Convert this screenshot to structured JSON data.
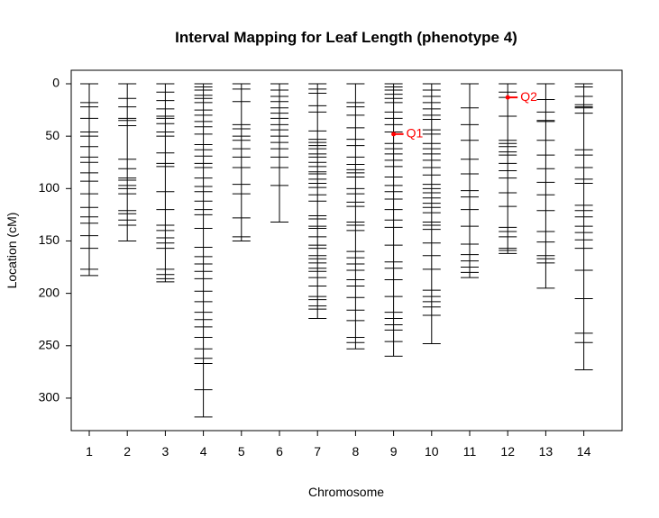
{
  "chart_data": {
    "type": "genetic-map",
    "title": "Interval Mapping for Leaf Length (phenotype 4)",
    "xlabel": "Chromosome",
    "ylabel": "Location (cM)",
    "ylim": [
      331,
      0
    ],
    "yticks": [
      0,
      50,
      100,
      150,
      200,
      250,
      300
    ],
    "grid": false,
    "legend": "none",
    "marker_color": "#000000",
    "qtl_color": "#ff0000",
    "chromosomes": [
      {
        "name": "1",
        "markers": [
          0,
          18,
          22,
          33,
          46,
          50,
          60,
          70,
          75,
          85,
          93,
          105,
          118,
          127,
          133,
          145,
          157,
          177,
          183
        ]
      },
      {
        "name": "2",
        "markers": [
          0,
          14,
          22,
          33,
          35,
          40,
          72,
          81,
          90,
          92,
          97,
          100,
          105,
          121,
          124,
          130,
          135,
          150
        ]
      },
      {
        "name": "3",
        "markers": [
          0,
          8,
          16,
          24,
          31,
          33,
          38,
          46,
          50,
          66,
          76,
          79,
          103,
          120,
          135,
          140,
          147,
          152,
          157,
          177,
          182,
          186,
          189
        ]
      },
      {
        "name": "4",
        "markers": [
          0,
          3,
          6,
          11,
          14,
          18,
          25,
          30,
          36,
          41,
          48,
          58,
          63,
          69,
          76,
          80,
          90,
          98,
          103,
          112,
          120,
          125,
          138,
          156,
          165,
          172,
          179,
          186,
          198,
          208,
          218,
          225,
          232,
          242,
          253,
          262,
          267,
          292,
          318
        ]
      },
      {
        "name": "5",
        "markers": [
          0,
          5,
          17,
          39,
          43,
          50,
          54,
          62,
          70,
          80,
          96,
          105,
          128,
          146,
          150
        ]
      },
      {
        "name": "6",
        "markers": [
          0,
          6,
          12,
          17,
          23,
          28,
          33,
          39,
          44,
          50,
          56,
          62,
          70,
          80,
          97,
          132
        ]
      },
      {
        "name": "7",
        "markers": [
          0,
          5,
          9,
          21,
          27,
          45,
          53,
          56,
          59,
          62,
          67,
          70,
          75,
          79,
          84,
          86,
          91,
          95,
          99,
          106,
          112,
          126,
          129,
          136,
          138,
          146,
          154,
          157,
          164,
          167,
          171,
          176,
          179,
          185,
          193,
          203,
          206,
          212,
          215,
          224
        ]
      },
      {
        "name": "8",
        "markers": [
          0,
          18,
          22,
          30,
          42,
          53,
          59,
          70,
          77,
          82,
          85,
          89,
          100,
          105,
          113,
          117,
          132,
          135,
          140,
          160,
          166,
          172,
          178,
          187,
          193,
          204,
          216,
          226,
          242,
          247,
          253
        ]
      },
      {
        "name": "9",
        "markers": [
          0,
          3,
          6,
          10,
          14,
          18,
          27,
          33,
          39,
          46,
          57,
          62,
          67,
          73,
          79,
          89,
          97,
          103,
          110,
          120,
          130,
          137,
          154,
          170,
          176,
          187,
          203,
          218,
          224,
          230,
          235,
          246,
          260
        ]
      },
      {
        "name": "10",
        "markers": [
          0,
          6,
          12,
          18,
          24,
          30,
          34,
          44,
          48,
          57,
          62,
          67,
          73,
          80,
          87,
          96,
          100,
          104,
          109,
          114,
          118,
          123,
          132,
          135,
          139,
          152,
          164,
          177,
          197,
          203,
          208,
          213,
          221,
          248
        ]
      },
      {
        "name": "11",
        "markers": [
          0,
          23,
          39,
          54,
          72,
          86,
          102,
          108,
          120,
          136,
          153,
          163,
          169,
          175,
          180,
          185
        ]
      },
      {
        "name": "12",
        "markers": [
          0,
          8,
          13,
          31,
          54,
          57,
          60,
          65,
          68,
          76,
          83,
          90,
          104,
          117,
          137,
          141,
          146,
          157,
          159,
          162
        ]
      },
      {
        "name": "13",
        "markers": [
          0,
          15,
          27,
          35,
          36,
          54,
          68,
          81,
          94,
          106,
          121,
          141,
          151,
          164,
          167,
          171,
          195
        ]
      },
      {
        "name": "14",
        "markers": [
          0,
          3,
          12,
          20,
          22,
          23,
          28,
          63,
          68,
          80,
          91,
          95,
          116,
          121,
          127,
          136,
          142,
          149,
          157,
          178,
          205,
          238,
          247,
          273
        ]
      }
    ],
    "qtls": [
      {
        "name": "Q1",
        "chromosome": "9",
        "position": 48
      },
      {
        "name": "Q2",
        "chromosome": "12",
        "position": 13
      }
    ]
  }
}
